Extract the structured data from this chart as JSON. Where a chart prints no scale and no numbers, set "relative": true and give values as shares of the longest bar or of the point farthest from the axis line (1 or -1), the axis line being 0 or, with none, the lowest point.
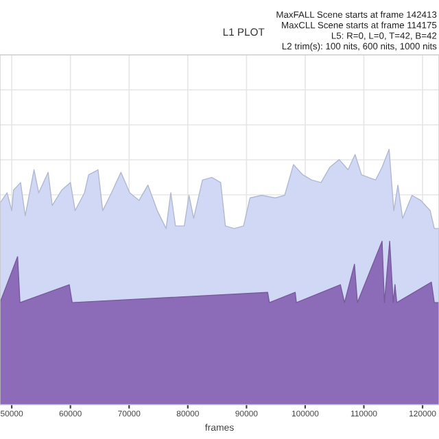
{
  "chart_data": {
    "type": "area",
    "relative": true,
    "title": "L1 PLOT",
    "xlabel": "frames",
    "annotations": [
      "MaxFALL Scene starts at frame 142413",
      "MaxCLL Scene starts at frame 114175",
      "L5: R=0, L=0, T=42, B=42",
      "L2 trim(s): 100 nits, 600 nits, 1000 nits"
    ],
    "xlim": [
      48000,
      122800
    ],
    "xticks": [
      50000,
      60000,
      70000,
      80000,
      90000,
      100000,
      110000,
      120000
    ],
    "grid": true,
    "series": [
      {
        "color": "#d0d8f5",
        "x": [
          48000,
          49200,
          50000,
          50300,
          51500,
          52300,
          53800,
          54600,
          56200,
          56900,
          58500,
          60000,
          60800,
          62400,
          63100,
          64700,
          65500,
          67000,
          68600,
          70100,
          71700,
          73200,
          74800,
          76300,
          77100,
          77900,
          79400,
          80200,
          81000,
          82500,
          84100,
          85600,
          86400,
          87900,
          89500,
          90600,
          92600,
          94900,
          96500,
          98000,
          99600,
          101100,
          102700,
          104200,
          105800,
          107300,
          108500,
          109600,
          112000,
          113100,
          114300,
          115100,
          115800,
          116600,
          118200,
          119700,
          121300,
          122000,
          122800
        ],
        "values": [
          0.79,
          0.83,
          0.76,
          0.84,
          0.87,
          0.74,
          0.92,
          0.83,
          0.91,
          0.78,
          0.84,
          0.87,
          0.76,
          0.83,
          0.9,
          0.92,
          0.76,
          0.83,
          0.91,
          0.83,
          0.8,
          0.86,
          0.76,
          0.69,
          0.83,
          0.7,
          0.7,
          0.82,
          0.73,
          0.88,
          0.89,
          0.87,
          0.7,
          0.69,
          0.7,
          0.81,
          0.82,
          0.81,
          0.82,
          0.94,
          0.9,
          0.88,
          0.87,
          0.93,
          0.96,
          0.92,
          0.98,
          0.9,
          0.88,
          0.93,
          1.0,
          0.76,
          0.86,
          0.73,
          0.82,
          0.8,
          0.76,
          0.69,
          0.69
        ]
      },
      {
        "color": "#8c6bb8",
        "x": [
          48000,
          51000,
          51400,
          59800,
          60300,
          93600,
          93900,
          98300,
          98500,
          106000,
          106700,
          108400,
          108900,
          113100,
          113500,
          114400,
          115000,
          115300,
          115600,
          121500,
          122000,
          122800
        ],
        "values": [
          0.4,
          0.58,
          0.4,
          0.47,
          0.4,
          0.44,
          0.4,
          0.44,
          0.4,
          0.47,
          0.4,
          0.55,
          0.4,
          0.64,
          0.4,
          0.64,
          0.4,
          0.47,
          0.4,
          0.48,
          0.4,
          0.4
        ]
      }
    ]
  }
}
